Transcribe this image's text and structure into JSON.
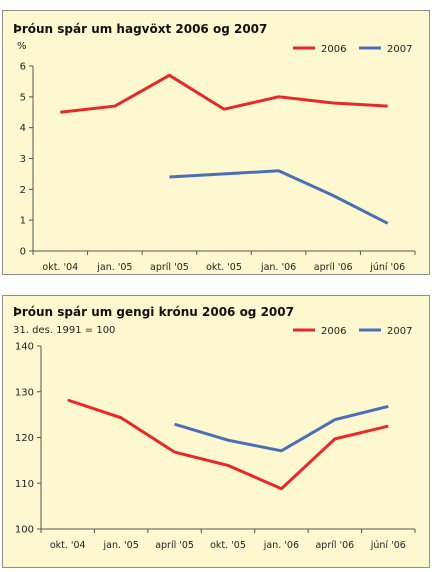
{
  "charts": [
    {
      "title": "Þróun spár um hagvöxt 2006 og 2007",
      "unit_label": "%",
      "y_ticks": [
        "0",
        "1",
        "2",
        "3",
        "4",
        "5",
        "6"
      ],
      "x_ticks": [
        "okt. '04",
        "jan. '05",
        "apríl '05",
        "okt. '05",
        "jan. '06",
        "apríl '06",
        "júní '06"
      ]
    },
    {
      "title": "Þróun spár um gengi krónu 2006 og 2007",
      "unit_label": "31. des. 1991 = 100",
      "y_ticks": [
        "100",
        "110",
        "120",
        "130",
        "140"
      ],
      "x_ticks": [
        "okt. '04",
        "jan. '05",
        "apríl '05",
        "okt. '05",
        "jan. '06",
        "apríl '06",
        "júní '06"
      ]
    }
  ],
  "colors": {
    "series_2006": "#e8292a",
    "series_2007": "#4a6fb5",
    "background": "#fdf8cf",
    "axis": "#555555"
  },
  "chart_data": [
    {
      "type": "line",
      "title": "Þróun spár um hagvöxt 2006 og 2007",
      "ylabel": "%",
      "categories": [
        "okt. '04",
        "jan. '05",
        "apríl '05",
        "okt. '05",
        "jan. '06",
        "apríl '06",
        "júní '06"
      ],
      "ylim": [
        0,
        6
      ],
      "grid": false,
      "legend": "top-right",
      "series": [
        {
          "name": "2006",
          "values": [
            4.5,
            4.7,
            5.7,
            4.6,
            5.0,
            4.8,
            4.7
          ]
        },
        {
          "name": "2007",
          "values": [
            null,
            null,
            2.4,
            2.5,
            2.6,
            1.8,
            0.9
          ]
        }
      ]
    },
    {
      "type": "line",
      "title": "Þróun spár um gengi krónu 2006 og 2007",
      "ylabel": "31. des. 1991 = 100",
      "categories": [
        "okt. '04",
        "jan. '05",
        "apríl '05",
        "okt. '05",
        "jan. '06",
        "apríl '06",
        "júní '06"
      ],
      "ylim": [
        100,
        140
      ],
      "grid": false,
      "legend": "top-right",
      "series": [
        {
          "name": "2006",
          "values": [
            128.2,
            124.3,
            116.8,
            113.9,
            108.8,
            119.7,
            122.5
          ]
        },
        {
          "name": "2007",
          "values": [
            null,
            null,
            122.9,
            119.4,
            117.1,
            123.9,
            126.8
          ]
        }
      ]
    }
  ]
}
